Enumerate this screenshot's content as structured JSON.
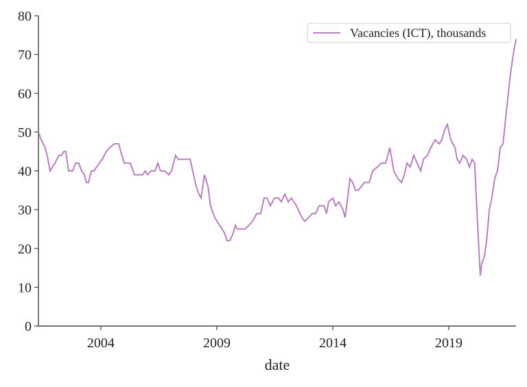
{
  "chart_data": {
    "type": "line",
    "xlabel": "date",
    "x": [
      2001.31,
      2001.43,
      2001.6,
      2001.72,
      2001.81,
      2002.02,
      2002.2,
      2002.31,
      2002.4,
      2002.49,
      2002.61,
      2002.79,
      2002.91,
      2003.05,
      2003.17,
      2003.29,
      2003.38,
      2003.47,
      2003.59,
      2003.7,
      2003.82,
      2003.94,
      2004.06,
      2004.24,
      2004.38,
      2004.59,
      2004.77,
      2004.86,
      2005.01,
      2005.27,
      2005.45,
      2005.8,
      2005.92,
      2006.01,
      2006.16,
      2006.34,
      2006.46,
      2006.57,
      2006.75,
      2006.93,
      2007.05,
      2007.22,
      2007.34,
      2007.85,
      2007.96,
      2008.11,
      2008.23,
      2008.32,
      2008.47,
      2008.62,
      2008.73,
      2008.91,
      2009.12,
      2009.33,
      2009.44,
      2009.56,
      2009.71,
      2009.8,
      2009.89,
      2010.07,
      2010.21,
      2010.39,
      2010.54,
      2010.72,
      2010.89,
      2011.04,
      2011.16,
      2011.31,
      2011.49,
      2011.66,
      2011.78,
      2011.93,
      2012.08,
      2012.22,
      2012.43,
      2012.67,
      2012.79,
      2012.96,
      2013.11,
      2013.26,
      2013.41,
      2013.62,
      2013.73,
      2013.82,
      2014.0,
      2014.12,
      2014.27,
      2014.44,
      2014.53,
      2014.62,
      2014.74,
      2014.86,
      2014.98,
      2015.09,
      2015.24,
      2015.36,
      2015.57,
      2015.72,
      2015.92,
      2016.1,
      2016.28,
      2016.46,
      2016.63,
      2016.81,
      2016.96,
      2017.08,
      2017.2,
      2017.34,
      2017.49,
      2017.64,
      2017.79,
      2017.91,
      2018.08,
      2018.23,
      2018.41,
      2018.59,
      2018.7,
      2018.85,
      2018.94,
      2019.09,
      2019.27,
      2019.36,
      2019.47,
      2019.62,
      2019.77,
      2019.89,
      2020.01,
      2020.12,
      2020.21,
      2020.36,
      2020.42,
      2020.54,
      2020.63,
      2020.75,
      2020.86,
      2020.98,
      2021.1,
      2021.22,
      2021.34,
      2021.46,
      2021.57,
      2021.66,
      2021.78,
      2021.9
    ],
    "series": [
      {
        "name": "Vacancies (ICT), thousands",
        "color": "#b77fbf",
        "values": [
          50,
          48,
          46,
          43,
          40,
          42,
          44,
          44,
          45,
          45,
          40,
          40,
          42,
          42,
          40,
          39,
          37,
          37,
          40,
          40,
          41,
          42,
          43,
          45,
          46,
          47,
          47,
          45,
          42,
          42,
          39,
          39,
          40,
          39,
          40,
          40,
          42,
          40,
          40,
          39,
          40,
          44,
          43,
          43,
          40,
          36,
          34,
          33,
          39,
          36,
          31,
          28,
          26,
          24,
          22,
          22,
          24,
          26,
          25,
          25,
          25,
          26,
          27,
          29,
          29,
          33,
          33,
          31,
          33,
          33,
          32,
          34,
          32,
          33,
          31,
          28,
          27,
          28,
          29,
          29,
          31,
          31,
          29,
          32,
          33,
          31,
          32,
          30,
          28,
          32,
          38,
          37,
          35,
          35,
          36,
          37,
          37,
          40,
          41,
          42,
          42,
          46,
          40,
          38,
          37,
          39,
          42,
          41,
          44,
          42,
          40,
          43,
          44,
          46,
          48,
          47,
          48,
          51,
          52,
          48,
          46,
          43,
          42,
          44,
          43,
          41,
          43,
          42,
          30,
          13,
          16,
          18,
          22,
          30,
          33,
          38,
          40,
          46,
          47,
          54,
          60,
          65,
          70,
          74
        ]
      }
    ],
    "xlim": [
      2001.31,
      2021.9
    ],
    "xticks": [
      2004,
      2009,
      2014,
      2019
    ],
    "ylim": [
      0,
      80
    ],
    "yticks": [
      0,
      10,
      20,
      30,
      40,
      50,
      60,
      70,
      80
    ],
    "legend": "upper right"
  }
}
